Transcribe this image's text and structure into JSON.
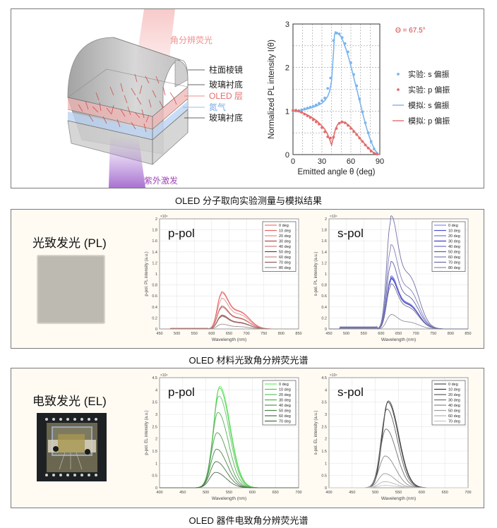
{
  "colors": {
    "s_pol": "#7ab4ee",
    "p_pol": "#e36d6d",
    "theta_label": "#d03a3a",
    "pink_beam": "#f4b6b6",
    "uv_beam": "#a46ad0",
    "nitrogen": "#7aa9e6",
    "oled_layer": "#e66b6b",
    "panel_bg": "#fffbf3"
  },
  "panel1": {
    "diagram": {
      "beam_top_label": "角分辨荧光",
      "beam_bottom_label": "紫外激发",
      "layers": [
        {
          "label": "柱面棱镜",
          "color": "#222222"
        },
        {
          "label": "玻璃衬底",
          "color": "#222222"
        },
        {
          "label": "OLED 层",
          "color": "#e66b6b"
        },
        {
          "label": "氮气",
          "color": "#7aa9e6"
        },
        {
          "label": "玻璃衬底",
          "color": "#222222"
        }
      ]
    },
    "caption": "OLED 分子取向实验测量与模拟结果"
  },
  "panel2": {
    "sample_label": "光致发光 (PL)",
    "caption": "OLED 材料光致角分辨荧光谱"
  },
  "panel3": {
    "sample_label": "电致发光 (EL)",
    "caption": "OLED 器件电致角分辨荧光谱"
  },
  "chart_data": [
    {
      "id": "orientation",
      "type": "line",
      "title": "",
      "annotation": "Θ = 67.5°",
      "xlabel": "Emitted angle θ (deg)",
      "ylabel": "Normalized PL intensity I(θ)",
      "xlim": [
        0,
        90
      ],
      "ylim": [
        0,
        3
      ],
      "xticks": [
        "0",
        "30",
        "60",
        "90"
      ],
      "yticks": [
        "0",
        "1",
        "2",
        "3"
      ],
      "grid": true,
      "legend_position": "right",
      "legend": [
        "实验: s 偏振",
        "实验: p 偏振",
        "模拟: s 偏振",
        "模拟: p 偏振"
      ],
      "series": [
        {
          "name": "实验: s 偏振",
          "kind": "points",
          "color": "#7ab4ee",
          "x": [
            0,
            3,
            6,
            9,
            12,
            15,
            18,
            21,
            24,
            27,
            30,
            33,
            36,
            39,
            42,
            45,
            48,
            51,
            54,
            57,
            60,
            63,
            66,
            69,
            72,
            75,
            78,
            81,
            84,
            87
          ],
          "y": [
            1.0,
            1.0,
            1.01,
            1.03,
            1.05,
            1.07,
            1.09,
            1.11,
            1.14,
            1.18,
            1.24,
            1.3,
            1.52,
            1.76,
            2.62,
            2.79,
            2.77,
            2.69,
            2.55,
            2.36,
            2.11,
            1.84,
            1.58,
            1.28,
            0.98,
            0.73,
            0.5,
            0.3,
            0.13,
            0.03
          ]
        },
        {
          "name": "实验: p 偏振",
          "kind": "points",
          "color": "#e36d6d",
          "x": [
            0,
            3,
            6,
            9,
            12,
            15,
            18,
            21,
            24,
            27,
            30,
            33,
            36,
            39,
            42,
            45,
            48,
            51,
            54,
            57,
            60,
            63,
            66,
            69,
            72,
            75,
            78,
            81,
            84,
            87
          ],
          "y": [
            1.02,
            1.02,
            1.0,
            0.97,
            0.93,
            0.89,
            0.85,
            0.8,
            0.75,
            0.7,
            0.62,
            0.52,
            0.41,
            0.38,
            0.4,
            0.6,
            0.72,
            0.75,
            0.73,
            0.67,
            0.6,
            0.53,
            0.46,
            0.38,
            0.3,
            0.22,
            0.15,
            0.08,
            0.03,
            0.01
          ]
        },
        {
          "name": "模拟: s 偏振",
          "kind": "line",
          "color": "#7ab4ee",
          "x": [
            0,
            5,
            10,
            15,
            20,
            25,
            30,
            33,
            36,
            38,
            40,
            42,
            43,
            44,
            46,
            48,
            50,
            52,
            55,
            58,
            61,
            64,
            67,
            70,
            73,
            76,
            79,
            82,
            85,
            88,
            90
          ],
          "y": [
            1.0,
            1.0,
            1.02,
            1.05,
            1.08,
            1.12,
            1.18,
            1.24,
            1.34,
            1.45,
            1.7,
            2.35,
            2.75,
            2.82,
            2.8,
            2.76,
            2.7,
            2.6,
            2.42,
            2.2,
            1.95,
            1.68,
            1.42,
            1.15,
            0.88,
            0.63,
            0.42,
            0.24,
            0.1,
            0.02,
            0.0
          ]
        },
        {
          "name": "模拟: p 偏振",
          "kind": "line",
          "color": "#e36d6d",
          "x": [
            0,
            5,
            10,
            15,
            20,
            25,
            30,
            33,
            36,
            38,
            40,
            42,
            44,
            46,
            48,
            50,
            52,
            55,
            58,
            61,
            64,
            67,
            70,
            73,
            76,
            79,
            82,
            85,
            88,
            90
          ],
          "y": [
            1.0,
            0.99,
            0.96,
            0.91,
            0.85,
            0.77,
            0.66,
            0.58,
            0.46,
            0.35,
            0.22,
            0.4,
            0.58,
            0.68,
            0.73,
            0.75,
            0.75,
            0.72,
            0.67,
            0.6,
            0.52,
            0.44,
            0.36,
            0.28,
            0.2,
            0.13,
            0.07,
            0.03,
            0.01,
            0.0
          ]
        }
      ]
    },
    {
      "id": "pl-ppol",
      "type": "line",
      "title": "p-pol",
      "xlabel": "Wavelength (nm)",
      "ylabel": "p-pol. PL intensity (a.u.)",
      "exponent_label": "×10⁴",
      "xlim": [
        450,
        850
      ],
      "ylim": [
        0,
        2
      ],
      "xticks": [
        "450",
        "500",
        "550",
        "600",
        "650",
        "700",
        "750",
        "800",
        "850"
      ],
      "yticks": [
        "0",
        "0.2",
        "0.4",
        "0.6",
        "0.8",
        "1",
        "1.2",
        "1.4",
        "1.6",
        "1.8",
        "2"
      ],
      "grid": true,
      "legend_position": "top-right",
      "legend": [
        "0 deg",
        "10 deg",
        "20 deg",
        "30 deg",
        "40 deg",
        "50 deg",
        "60 deg",
        "70 deg",
        "80 deg"
      ],
      "peak_wavelength": 627,
      "shoulder_wavelength": 680,
      "series": [
        {
          "name": "0 deg",
          "peak": 0.62,
          "color": "#f07a7a"
        },
        {
          "name": "10 deg",
          "peak": 0.6,
          "color": "#e86262"
        },
        {
          "name": "20 deg",
          "peak": 0.51,
          "color": "#e88a8a"
        },
        {
          "name": "30 deg",
          "peak": 0.38,
          "color": "#b04c4c"
        },
        {
          "name": "40 deg",
          "peak": 0.36,
          "color": "#d08080"
        },
        {
          "name": "50 deg",
          "peak": 0.23,
          "color": "#8a3a3a"
        },
        {
          "name": "60 deg",
          "peak": 0.22,
          "color": "#c09090"
        },
        {
          "name": "70 deg",
          "peak": 0.21,
          "color": "#946060"
        },
        {
          "name": "80 deg",
          "peak": 0.08,
          "color": "#a09090"
        }
      ]
    },
    {
      "id": "pl-spol",
      "type": "line",
      "title": "s-pol",
      "xlabel": "Wavelength (nm)",
      "ylabel": "s-pol. PL intensity (a.u.)",
      "exponent_label": "×10⁴",
      "xlim": [
        450,
        850
      ],
      "ylim": [
        0,
        2
      ],
      "xticks": [
        "450",
        "500",
        "550",
        "600",
        "650",
        "700",
        "750",
        "800",
        "850"
      ],
      "yticks": [
        "0",
        "0.2",
        "0.4",
        "0.6",
        "0.8",
        "1",
        "1.2",
        "1.4",
        "1.6",
        "1.8",
        "2"
      ],
      "grid": true,
      "legend_position": "top-right",
      "legend": [
        "0 deg",
        "10 deg",
        "20 deg",
        "30 deg",
        "40 deg",
        "50 deg",
        "60 deg",
        "70 deg",
        "80 deg"
      ],
      "peak_wavelength": 627,
      "shoulder_wavelength": 680,
      "series": [
        {
          "name": "0 deg",
          "peak": 0.86,
          "color": "#8c8cf0"
        },
        {
          "name": "10 deg",
          "peak": 0.84,
          "color": "#5050d8"
        },
        {
          "name": "20 deg",
          "peak": 0.85,
          "color": "#7878e8"
        },
        {
          "name": "30 deg",
          "peak": 0.83,
          "color": "#4040c0"
        },
        {
          "name": "40 deg",
          "peak": 0.88,
          "color": "#7070d0"
        },
        {
          "name": "50 deg",
          "peak": 1.12,
          "color": "#6060b0"
        },
        {
          "name": "60 deg",
          "peak": 1.4,
          "color": "#8080b8"
        },
        {
          "name": "70 deg",
          "peak": 1.88,
          "color": "#7070a8"
        },
        {
          "name": "80 deg",
          "peak": 0.24,
          "color": "#9090a0"
        },
        {
          "name": "",
          "peak": 0.75,
          "color": "#707090"
        }
      ]
    },
    {
      "id": "el-ppol",
      "type": "line",
      "title": "p-pol",
      "xlabel": "Wavelength (nm)",
      "ylabel": "p-pol. EL intensity (a.u.)",
      "exponent_label": "×10⁴",
      "xlim": [
        400,
        700
      ],
      "ylim": [
        0,
        4.5
      ],
      "xticks": [
        "400",
        "450",
        "500",
        "550",
        "600",
        "650",
        "700"
      ],
      "yticks": [
        "0",
        "0.5",
        "1",
        "1.5",
        "2",
        "2.5",
        "3",
        "3.5",
        "4",
        "4.5"
      ],
      "grid": true,
      "legend_position": "top-right",
      "legend": [
        "0 deg",
        "10 deg",
        "20 deg",
        "30 deg",
        "40 deg",
        "50 deg",
        "60 deg",
        "70 deg"
      ],
      "series": [
        {
          "name": "0 deg",
          "peak": 4.15,
          "peak_wavelength": 530,
          "color": "#66ee66"
        },
        {
          "name": "10 deg",
          "peak": 4.08,
          "peak_wavelength": 529,
          "color": "#4ed04e"
        },
        {
          "name": "20 deg",
          "peak": 3.75,
          "peak_wavelength": 528,
          "color": "#66c866"
        },
        {
          "name": "30 deg",
          "peak": 3.08,
          "peak_wavelength": 526,
          "color": "#5aae5a"
        },
        {
          "name": "40 deg",
          "peak": 2.25,
          "peak_wavelength": 524,
          "color": "#589858"
        },
        {
          "name": "50 deg",
          "peak": 1.58,
          "peak_wavelength": 523,
          "color": "#4e884e"
        },
        {
          "name": "60 deg",
          "peak": 1.07,
          "peak_wavelength": 522,
          "color": "#4a744a"
        },
        {
          "name": "70 deg",
          "peak": 0.63,
          "peak_wavelength": 521,
          "color": "#506a50"
        }
      ]
    },
    {
      "id": "el-spol",
      "type": "line",
      "title": "s-pol",
      "xlabel": "Wavelength (nm)",
      "ylabel": "s-pol. EL intensity (a.u.)",
      "exponent_label": "×10⁴",
      "xlim": [
        400,
        700
      ],
      "ylim": [
        0,
        4.5
      ],
      "xticks": [
        "400",
        "450",
        "500",
        "550",
        "600",
        "650",
        "700"
      ],
      "yticks": [
        "0",
        "0.5",
        "1",
        "1.5",
        "2",
        "2.5",
        "3",
        "3.5",
        "4",
        "4.5"
      ],
      "grid": true,
      "legend_position": "top-right",
      "legend": [
        "0 deg",
        "10 deg",
        "20 deg",
        "30 deg",
        "40 deg",
        "50 deg",
        "60 deg",
        "70 deg"
      ],
      "series": [
        {
          "name": "0 deg",
          "peak": 3.55,
          "peak_wavelength": 528,
          "color": "#505050"
        },
        {
          "name": "10 deg",
          "peak": 3.5,
          "peak_wavelength": 527,
          "color": "#3a3a3a"
        },
        {
          "name": "20 deg",
          "peak": 3.22,
          "peak_wavelength": 525,
          "color": "#606060"
        },
        {
          "name": "30 deg",
          "peak": 2.4,
          "peak_wavelength": 523,
          "color": "#727272"
        },
        {
          "name": "40 deg",
          "peak": 1.3,
          "peak_wavelength": 521,
          "color": "#8a8a8a"
        },
        {
          "name": "50 deg",
          "peak": 0.58,
          "peak_wavelength": 520,
          "color": "#a0a0a0"
        },
        {
          "name": "60 deg",
          "peak": 0.25,
          "peak_wavelength": 520,
          "color": "#b4b4b4"
        },
        {
          "name": "70 deg",
          "peak": 0.1,
          "peak_wavelength": 520,
          "color": "#c8c8c8"
        }
      ]
    }
  ]
}
